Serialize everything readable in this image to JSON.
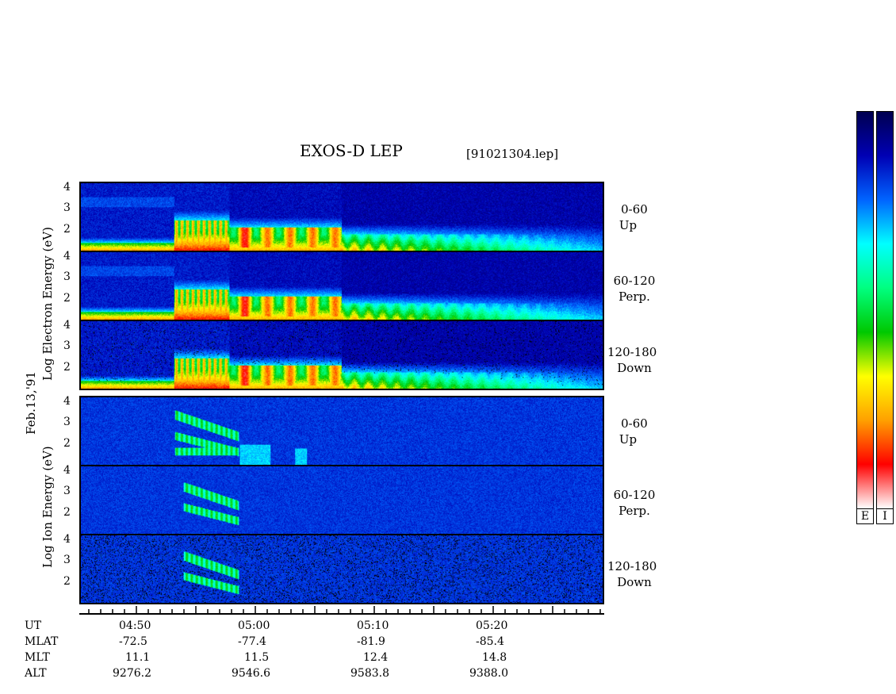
{
  "title": "EXOS-D LEP",
  "file_label": "[91021304.lep]",
  "date_label": "Feb.13,'91",
  "electron_axis_label": "Log Electron Energy (eV)",
  "ion_axis_label": "Log Ion Energy (eV)",
  "colorbar_labels": [
    "E",
    "I"
  ],
  "colors": {
    "scale": [
      "#ffffff",
      "#ff0000",
      "#ffa000",
      "#ffff00",
      "#00c800",
      "#00ff80",
      "#00ffff",
      "#0064ff",
      "#0000b4",
      "#000050"
    ]
  },
  "chart_data": {
    "type": "heatmap",
    "x_range": [
      "04:45",
      "05:29"
    ],
    "y_range": [
      1,
      4.3
    ],
    "y_ticks": [
      "4",
      "3",
      "2"
    ],
    "panels": [
      {
        "species": "Electron",
        "pitch": "0-60",
        "dir": "Up"
      },
      {
        "species": "Electron",
        "pitch": "60-120",
        "dir": "Perp."
      },
      {
        "species": "Electron",
        "pitch": "120-180",
        "dir": "Down"
      },
      {
        "species": "Ion",
        "pitch": "0-60",
        "dir": "Up"
      },
      {
        "species": "Ion",
        "pitch": "60-120",
        "dir": "Perp."
      },
      {
        "species": "Ion",
        "pitch": "120-180",
        "dir": "Down"
      }
    ],
    "ephemeris": {
      "row_labels": [
        "UT",
        "MLAT",
        "MLT",
        "ALT"
      ],
      "columns": [
        {
          "UT": "04:50",
          "MLAT": "-72.5",
          "MLT": "11.1",
          "ALT": "9276.2"
        },
        {
          "UT": "05:00",
          "MLAT": "-77.4",
          "MLT": "11.5",
          "ALT": "9546.6"
        },
        {
          "UT": "05:10",
          "MLAT": "-81.9",
          "MLT": "12.4",
          "ALT": "9583.8"
        },
        {
          "UT": "05:20",
          "MLAT": "-85.4",
          "MLT": "14.8",
          "ALT": "9388.0"
        }
      ]
    }
  }
}
